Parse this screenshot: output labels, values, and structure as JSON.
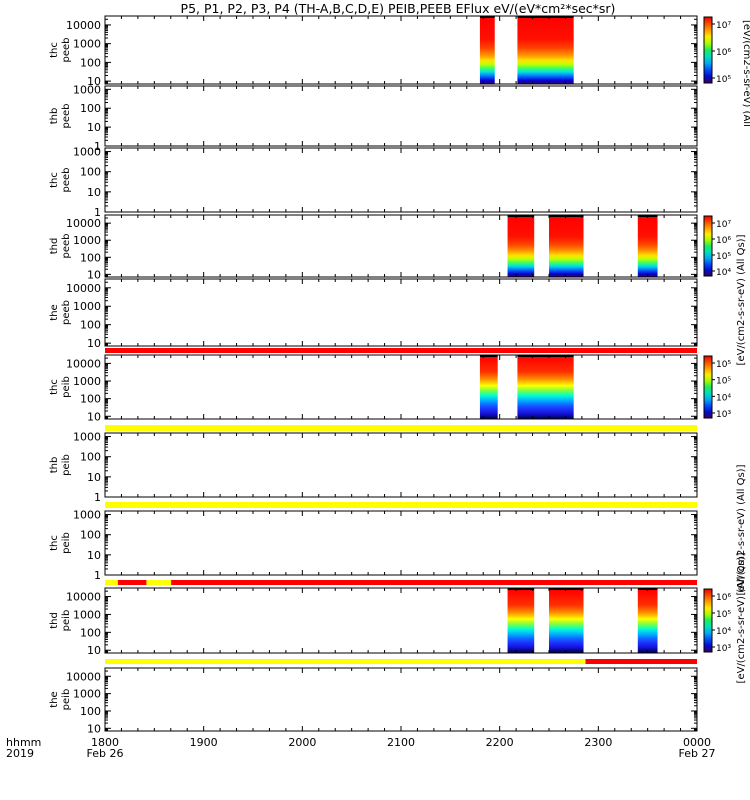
{
  "title": "P5, P1, P2, P3, P4 (TH-A,B,C,D,E) PEIB,PEEB EFlux eV/(eV*cm²*sec*sr)",
  "colorbar_unit_top": "[eV/(cm2-s-sr-eV) (All",
  "colorbar_unit_mid_a": "[eV/(cm2-s-sr-eV) (All Qs)]",
  "colorbar_unit_mid_b": "[eV/(cm2-s-sr-eV) (All Qs)]",
  "colorbar_unit_bottom": "[eV/(cm2-s-sr-eV) (All Qs)]",
  "x_axis": {
    "row_label_1": "hhmm",
    "row_label_2": "2019",
    "ticks": [
      {
        "hour": 18.0,
        "label": "1800",
        "date": "Feb 26"
      },
      {
        "hour": 19.0,
        "label": "1900",
        "date": ""
      },
      {
        "hour": 20.0,
        "label": "2000",
        "date": ""
      },
      {
        "hour": 21.0,
        "label": "2100",
        "date": ""
      },
      {
        "hour": 22.0,
        "label": "2200",
        "date": ""
      },
      {
        "hour": 23.0,
        "label": "2300",
        "date": ""
      },
      {
        "hour": 24.0,
        "label": "0000",
        "date": "Feb 27"
      }
    ]
  },
  "chart_data": {
    "type": "heatmap",
    "x_range_hours": [
      18.0,
      24.0
    ],
    "panels": [
      {
        "label": [
          "thc",
          "peeb"
        ],
        "yticks": [
          "10000",
          "1000",
          "100",
          "10"
        ],
        "ylim": [
          7,
          30000
        ],
        "log": true,
        "colorbar": {
          "ticks": [
            "10⁷",
            "10⁶",
            "10⁵"
          ]
        },
        "blocks": [
          {
            "start": 21.8,
            "end": 21.95,
            "profile": "peeb"
          },
          {
            "start": 22.18,
            "end": 22.75,
            "profile": "peeb"
          }
        ]
      },
      {
        "label": [
          "thb",
          "peeb"
        ],
        "yticks": [
          "1000",
          "100",
          "10",
          "1"
        ],
        "ylim": [
          1,
          1500
        ],
        "log": true,
        "blocks": []
      },
      {
        "label": [
          "thc",
          "peeb"
        ],
        "yticks": [
          "1000",
          "100",
          "10",
          "1"
        ],
        "ylim": [
          1,
          1500
        ],
        "log": true,
        "blocks": []
      },
      {
        "label": [
          "thd",
          "peeb"
        ],
        "yticks": [
          "10000",
          "1000",
          "100",
          "10"
        ],
        "ylim": [
          7,
          30000
        ],
        "log": true,
        "colorbar": {
          "ticks": [
            "10⁷",
            "10⁶",
            "10⁵",
            "10⁴"
          ]
        },
        "blocks": [
          {
            "start": 22.08,
            "end": 22.35,
            "profile": "peeb"
          },
          {
            "start": 22.5,
            "end": 22.85,
            "profile": "peeb"
          },
          {
            "start": 23.4,
            "end": 23.6,
            "profile": "peeb"
          }
        ]
      },
      {
        "label": [
          "the",
          "peeb"
        ],
        "yticks": [
          "10000",
          "1000",
          "100",
          "10"
        ],
        "ylim": [
          7,
          30000
        ],
        "log": true,
        "blocks": []
      },
      {
        "label": [
          "thc",
          "peib"
        ],
        "yticks": [
          "10000",
          "1000",
          "100",
          "10"
        ],
        "ylim": [
          7,
          30000
        ],
        "log": true,
        "colorbar": {
          "ticks": [
            "10⁵",
            "10⁵",
            "10⁴",
            "10³"
          ]
        },
        "blocks": [
          {
            "start": 21.8,
            "end": 21.98,
            "profile": "peib"
          },
          {
            "start": 22.18,
            "end": 22.75,
            "profile": "peib"
          }
        ]
      },
      {
        "label": [
          "thb",
          "peib"
        ],
        "yticks": [
          "1000",
          "100",
          "10",
          "1"
        ],
        "ylim": [
          1,
          1500
        ],
        "log": true,
        "blocks": []
      },
      {
        "label": [
          "thc",
          "peib"
        ],
        "yticks": [
          "1000",
          "100",
          "10",
          "1"
        ],
        "ylim": [
          1,
          1500
        ],
        "log": true,
        "blocks": []
      },
      {
        "label": [
          "thd",
          "peib"
        ],
        "yticks": [
          "10000",
          "1000",
          "100",
          "10"
        ],
        "ylim": [
          7,
          30000
        ],
        "log": true,
        "colorbar": {
          "ticks": [
            "10⁶",
            "10⁵",
            "10⁴",
            "10³"
          ]
        },
        "blocks": [
          {
            "start": 22.08,
            "end": 22.35,
            "profile": "peib"
          },
          {
            "start": 22.5,
            "end": 22.85,
            "profile": "peib"
          },
          {
            "start": 23.4,
            "end": 23.6,
            "profile": "peib"
          }
        ]
      },
      {
        "label": [
          "the",
          "peib"
        ],
        "yticks": [
          "10000",
          "1000",
          "100",
          "10"
        ],
        "ylim": [
          7,
          30000
        ],
        "log": true,
        "blocks": []
      }
    ],
    "status_bars": [
      {
        "after_panel": 4,
        "segments": [
          {
            "start": 18.0,
            "end": 24.0,
            "color": "#ff0000"
          }
        ]
      },
      {
        "after_panel": 5,
        "segments": [
          {
            "start": 18.0,
            "end": 24.0,
            "color": "#ffff00"
          }
        ]
      },
      {
        "after_panel": 6,
        "segments": [
          {
            "start": 18.0,
            "end": 24.0,
            "color": "#ffff00"
          }
        ]
      },
      {
        "after_panel": 7,
        "segments": [
          {
            "start": 18.0,
            "end": 18.13,
            "color": "#ffff00"
          },
          {
            "start": 18.13,
            "end": 18.42,
            "color": "#ff0000"
          },
          {
            "start": 18.42,
            "end": 18.67,
            "color": "#ffff00"
          },
          {
            "start": 18.67,
            "end": 24.0,
            "color": "#ff0000"
          }
        ]
      },
      {
        "after_panel": 8,
        "segments": [
          {
            "start": 18.0,
            "end": 22.87,
            "color": "#ffff00"
          },
          {
            "start": 22.87,
            "end": 24.0,
            "color": "#ff0000"
          }
        ]
      }
    ]
  }
}
